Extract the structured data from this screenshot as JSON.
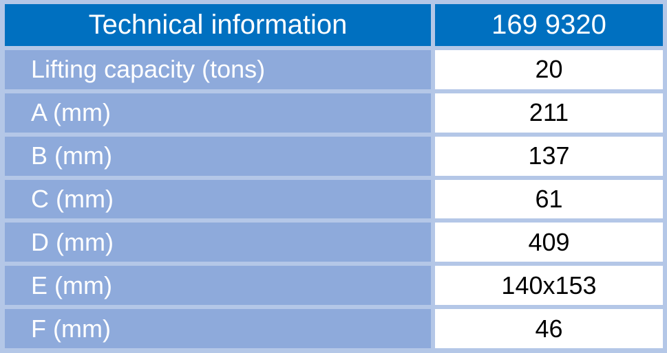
{
  "table": {
    "header": [
      "Technical information",
      "169 9320"
    ],
    "rows": [
      [
        "Lifting capacity (tons)",
        20
      ],
      [
        "A (mm)",
        211
      ],
      [
        "B (mm)",
        137
      ],
      [
        "C (mm)",
        61
      ],
      [
        "D (mm)",
        409
      ],
      [
        "E (mm)",
        "140x153"
      ],
      [
        "F (mm)",
        46
      ]
    ]
  }
}
